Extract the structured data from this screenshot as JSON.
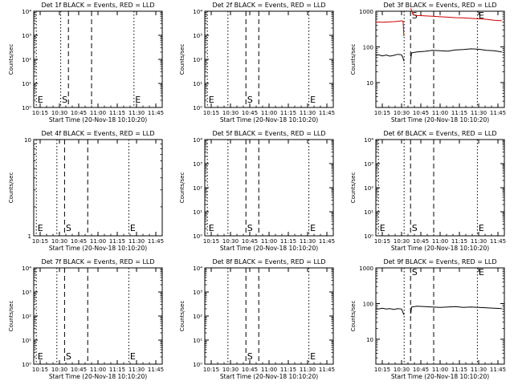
{
  "panel_title_suffix": "BLACK = Events, RED = LLD",
  "x_axis_label": "Start Time (20-Nov-18 10:10:20)",
  "y_axis_label": "Counts/sec",
  "x_tick_labels": [
    "10:15",
    "10:30",
    "10:45",
    "11:00",
    "11:15",
    "11:30",
    "11:45"
  ],
  "colors": {
    "events": "#000000",
    "lld": "#cc0000",
    "axis": "#000000",
    "background": "#ffffff"
  },
  "chart_data": [
    {
      "type": "line",
      "title": "Det 1f BLACK = Events, RED = LLD",
      "yscale": "log",
      "xlabel": "Start Time (20-Nov-18 10:10:20)",
      "ylabel": "Counts/sec",
      "ylim": [
        1,
        10000
      ],
      "y_ticks": [
        "10⁰",
        "10¹",
        "10²",
        "10³",
        "10⁴"
      ],
      "xlim": [
        "10:10",
        "11:50"
      ],
      "x_ticks": [
        "10:15",
        "10:30",
        "10:45",
        "11:00",
        "11:15",
        "11:30",
        "11:45"
      ],
      "markers": [
        {
          "label": "E",
          "x": "10:12",
          "style": "dotted"
        },
        {
          "label": "S",
          "x": "10:31",
          "style": "dotted"
        },
        {
          "label": "",
          "x": "10:37",
          "style": "dashed"
        },
        {
          "label": "",
          "x": "10:55",
          "style": "dashed"
        },
        {
          "label": "E",
          "x": "11:28",
          "style": "dotted"
        }
      ],
      "series": []
    },
    {
      "type": "line",
      "title": "Det 2f BLACK = Events, RED = LLD",
      "yscale": "log",
      "xlabel": "Start Time (20-Nov-18 10:10:20)",
      "ylabel": "Counts/sec",
      "ylim": [
        1,
        10000
      ],
      "y_ticks": [
        "10⁰",
        "10¹",
        "10²",
        "10³",
        "10⁴"
      ],
      "xlim": [
        "10:10",
        "11:50"
      ],
      "x_ticks": [
        "10:15",
        "10:30",
        "10:45",
        "11:00",
        "11:15",
        "11:30",
        "11:45"
      ],
      "markers": [
        {
          "label": "E",
          "x": "10:12",
          "style": "dotted"
        },
        {
          "label": "",
          "x": "10:28",
          "style": "dotted"
        },
        {
          "label": "S",
          "x": "10:42",
          "style": "dashed"
        },
        {
          "label": "",
          "x": "10:52",
          "style": "dashed"
        },
        {
          "label": "E",
          "x": "11:31",
          "style": "dotted"
        }
      ],
      "series": []
    },
    {
      "type": "line",
      "title": "Det 3f BLACK = Events, RED = LLD",
      "yscale": "log",
      "xlabel": "Start Time (20-Nov-18 10:10:20)",
      "ylabel": "Counts/sec",
      "ylim": [
        2,
        1000
      ],
      "y_ticks": [
        "10",
        "100",
        "1000"
      ],
      "xlim": [
        "10:10",
        "11:50"
      ],
      "x_ticks": [
        "10:15",
        "10:30",
        "10:45",
        "11:00",
        "11:15",
        "11:30",
        "11:45"
      ],
      "markers": [
        {
          "label": "",
          "x": "10:32",
          "style": "dotted"
        },
        {
          "label": "S",
          "x": "10:37",
          "style": "dashed"
        },
        {
          "label": "",
          "x": "10:55",
          "style": "dashed"
        },
        {
          "label": "E",
          "x": "11:29",
          "style": "dotted"
        }
      ],
      "series": [
        {
          "color": "#cc0000",
          "segments": [
            [
              [
                10.1667,
                500
              ],
              [
                10.25,
                490
              ],
              [
                10.33,
                500
              ],
              [
                10.4,
                510
              ],
              [
                10.45,
                520
              ],
              [
                10.5,
                540
              ],
              [
                10.52,
                520
              ],
              [
                10.53,
                200
              ]
            ],
            [
              [
                10.62,
                1200
              ],
              [
                10.65,
                800
              ],
              [
                10.7,
                760
              ],
              [
                10.8,
                740
              ],
              [
                10.9,
                720
              ],
              [
                11.0,
                700
              ],
              [
                11.1,
                680
              ],
              [
                11.2,
                660
              ],
              [
                11.3,
                650
              ],
              [
                11.4,
                630
              ],
              [
                11.5,
                610
              ],
              [
                11.58,
                600
              ],
              [
                11.7,
                560
              ],
              [
                11.8,
                540
              ]
            ]
          ]
        },
        {
          "color": "#000000",
          "segments": [
            [
              [
                10.1667,
                58
              ],
              [
                10.2,
                60
              ],
              [
                10.25,
                56
              ],
              [
                10.3,
                59
              ],
              [
                10.35,
                55
              ],
              [
                10.4,
                58
              ],
              [
                10.45,
                62
              ],
              [
                10.5,
                60
              ],
              [
                10.52,
                48
              ],
              [
                10.53,
                40
              ]
            ],
            [
              [
                10.62,
                45
              ],
              [
                10.63,
                68
              ],
              [
                10.7,
                72
              ],
              [
                10.8,
                75
              ],
              [
                10.9,
                80
              ],
              [
                11.0,
                78
              ],
              [
                11.1,
                76
              ],
              [
                11.2,
                82
              ],
              [
                11.3,
                84
              ],
              [
                11.4,
                88
              ],
              [
                11.5,
                86
              ],
              [
                11.6,
                80
              ],
              [
                11.7,
                78
              ],
              [
                11.8,
                72
              ]
            ]
          ]
        }
      ]
    },
    {
      "type": "line",
      "title": "Det 4f BLACK = Events, RED = LLD",
      "yscale": "log",
      "xlabel": "Start Time (20-Nov-18 10:10:20)",
      "ylabel": "Counts/sec",
      "ylim": [
        1,
        10
      ],
      "y_ticks": [
        "1",
        "10"
      ],
      "xlim": [
        "10:10",
        "11:50"
      ],
      "x_ticks": [
        "10:15",
        "10:30",
        "10:45",
        "11:00",
        "11:15",
        "11:30",
        "11:45"
      ],
      "markers": [
        {
          "label": "E",
          "x": "10:12",
          "style": "dotted"
        },
        {
          "label": "",
          "x": "10:28",
          "style": "dotted"
        },
        {
          "label": "S",
          "x": "10:34",
          "style": "dashed"
        },
        {
          "label": "",
          "x": "10:52",
          "style": "dashed"
        },
        {
          "label": "E",
          "x": "11:24",
          "style": "dotted"
        }
      ],
      "series": []
    },
    {
      "type": "line",
      "title": "Det 5f BLACK = Events, RED = LLD",
      "yscale": "log",
      "xlabel": "Start Time (20-Nov-18 10:10:20)",
      "ylabel": "Counts/sec",
      "ylim": [
        1,
        10000
      ],
      "y_ticks": [
        "10⁰",
        "10¹",
        "10²",
        "10³",
        "10⁴"
      ],
      "xlim": [
        "10:10",
        "11:50"
      ],
      "x_ticks": [
        "10:15",
        "10:30",
        "10:45",
        "11:00",
        "11:15",
        "11:30",
        "11:45"
      ],
      "markers": [
        {
          "label": "E",
          "x": "10:12",
          "style": "dotted"
        },
        {
          "label": "",
          "x": "10:28",
          "style": "dotted"
        },
        {
          "label": "S",
          "x": "10:42",
          "style": "dashed"
        },
        {
          "label": "",
          "x": "10:52",
          "style": "dashed"
        },
        {
          "label": "E",
          "x": "11:31",
          "style": "dotted"
        }
      ],
      "series": []
    },
    {
      "type": "line",
      "title": "Det 6f BLACK = Events, RED = LLD",
      "yscale": "log",
      "xlabel": "Start Time (20-Nov-18 10:10:20)",
      "ylabel": "Counts/sec",
      "ylim": [
        1,
        10000
      ],
      "y_ticks": [
        "10⁰",
        "10¹",
        "10²",
        "10³",
        "10⁴"
      ],
      "xlim": [
        "10:10",
        "11:50"
      ],
      "x_ticks": [
        "10:15",
        "10:30",
        "10:45",
        "11:00",
        "11:15",
        "11:30",
        "11:45"
      ],
      "markers": [
        {
          "label": "E",
          "x": "10:12",
          "style": "dotted"
        },
        {
          "label": "",
          "x": "10:32",
          "style": "dotted"
        },
        {
          "label": "S",
          "x": "10:37",
          "style": "dashed"
        },
        {
          "label": "",
          "x": "10:55",
          "style": "dashed"
        },
        {
          "label": "E",
          "x": "11:29",
          "style": "dotted"
        }
      ],
      "series": []
    },
    {
      "type": "line",
      "title": "Det 7f BLACK = Events, RED = LLD",
      "yscale": "log",
      "xlabel": "Start Time (20-Nov-18 10:10:20)",
      "ylabel": "Counts/sec",
      "ylim": [
        1,
        10000
      ],
      "y_ticks": [
        "10⁰",
        "10¹",
        "10²",
        "10³",
        "10⁴"
      ],
      "xlim": [
        "10:10",
        "11:50"
      ],
      "x_ticks": [
        "10:15",
        "10:30",
        "10:45",
        "11:00",
        "11:15",
        "11:30",
        "11:45"
      ],
      "markers": [
        {
          "label": "E",
          "x": "10:12",
          "style": "dotted"
        },
        {
          "label": "",
          "x": "10:28",
          "style": "dotted"
        },
        {
          "label": "S",
          "x": "10:34",
          "style": "dashed"
        },
        {
          "label": "",
          "x": "10:52",
          "style": "dashed"
        },
        {
          "label": "E",
          "x": "11:24",
          "style": "dotted"
        }
      ],
      "series": []
    },
    {
      "type": "line",
      "title": "Det 8f BLACK = Events, RED = LLD",
      "yscale": "log",
      "xlabel": "Start Time (20-Nov-18 10:10:20)",
      "ylabel": "Counts/sec",
      "ylim": [
        1,
        10000
      ],
      "y_ticks": [
        "10⁰",
        "10¹",
        "10²",
        "10³",
        "10⁴"
      ],
      "xlim": [
        "10:10",
        "11:50"
      ],
      "x_ticks": [
        "10:15",
        "10:30",
        "10:45",
        "11:00",
        "11:15",
        "11:30",
        "11:45"
      ],
      "markers": [
        {
          "label": "",
          "x": "10:28",
          "style": "dotted"
        },
        {
          "label": "S",
          "x": "10:42",
          "style": "dashed"
        },
        {
          "label": "",
          "x": "10:52",
          "style": "dashed"
        },
        {
          "label": "E",
          "x": "11:31",
          "style": "dotted"
        }
      ],
      "series": []
    },
    {
      "type": "line",
      "title": "Det 9f BLACK = Events, RED = LLD",
      "yscale": "log",
      "xlabel": "Start Time (20-Nov-18 10:10:20)",
      "ylabel": "Counts/sec",
      "ylim": [
        2,
        1000
      ],
      "y_ticks": [
        "10",
        "100",
        "1000"
      ],
      "xlim": [
        "10:10",
        "11:50"
      ],
      "x_ticks": [
        "10:15",
        "10:30",
        "10:45",
        "11:00",
        "11:15",
        "11:30",
        "11:45"
      ],
      "markers": [
        {
          "label": "",
          "x": "10:32",
          "style": "dotted"
        },
        {
          "label": "S",
          "x": "10:37",
          "style": "dashed"
        },
        {
          "label": "",
          "x": "10:55",
          "style": "dashed"
        },
        {
          "label": "E",
          "x": "11:29",
          "style": "dotted"
        }
      ],
      "series": [
        {
          "color": "#000000",
          "segments": [
            [
              [
                10.1667,
                72
              ],
              [
                10.2,
                70
              ],
              [
                10.25,
                74
              ],
              [
                10.3,
                70
              ],
              [
                10.35,
                72
              ],
              [
                10.4,
                68
              ],
              [
                10.45,
                72
              ],
              [
                10.5,
                70
              ],
              [
                10.52,
                55
              ],
              [
                10.53,
                48
              ]
            ],
            [
              [
                10.62,
                52
              ],
              [
                10.63,
                80
              ],
              [
                10.7,
                84
              ],
              [
                10.8,
                82
              ],
              [
                10.9,
                80
              ],
              [
                11.0,
                78
              ],
              [
                11.1,
                80
              ],
              [
                11.2,
                82
              ],
              [
                11.3,
                78
              ],
              [
                11.4,
                80
              ],
              [
                11.5,
                78
              ],
              [
                11.6,
                76
              ],
              [
                11.7,
                74
              ],
              [
                11.8,
                72
              ]
            ]
          ]
        }
      ]
    }
  ]
}
